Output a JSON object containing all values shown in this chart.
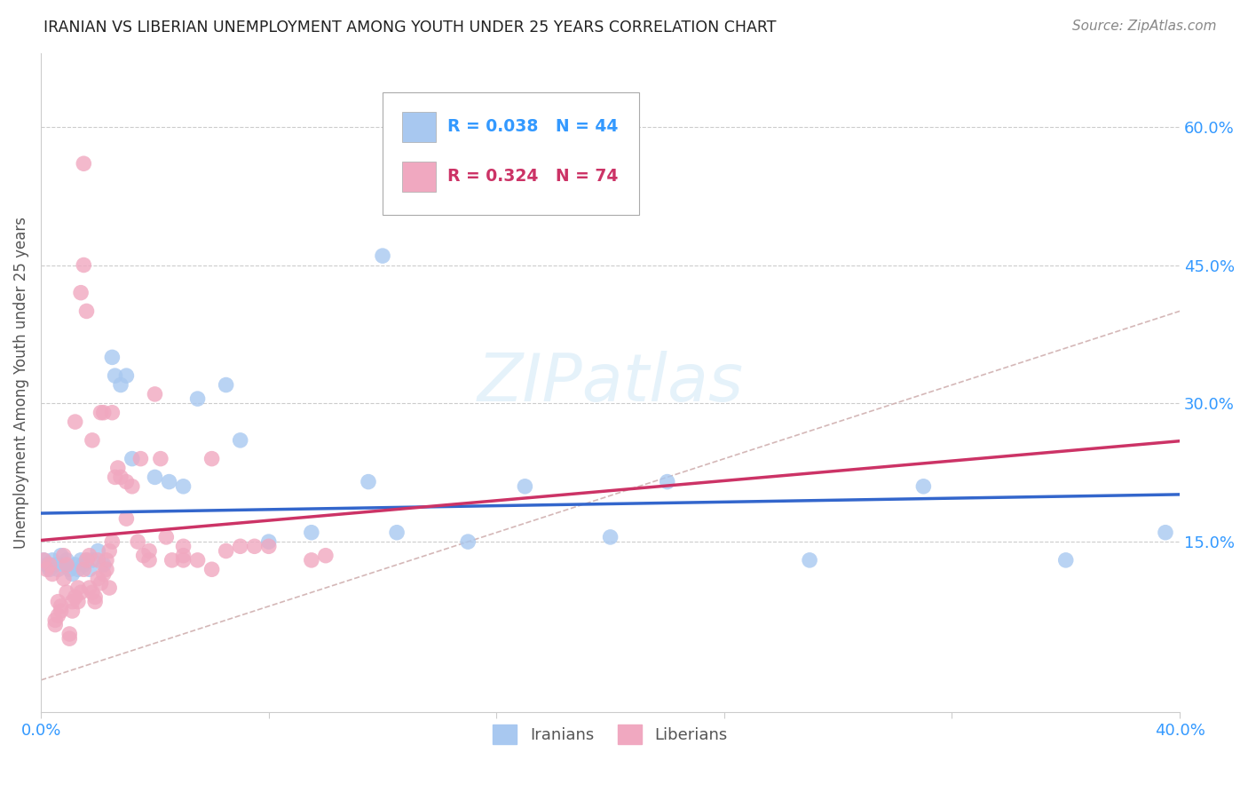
{
  "title": "IRANIAN VS LIBERIAN UNEMPLOYMENT AMONG YOUTH UNDER 25 YEARS CORRELATION CHART",
  "source": "Source: ZipAtlas.com",
  "ylabel": "Unemployment Among Youth under 25 years",
  "x_min": 0.0,
  "x_max": 0.4,
  "y_min": -0.035,
  "y_max": 0.68,
  "iranian_color": "#a8c8f0",
  "liberian_color": "#f0a8c0",
  "trendline_iranian_color": "#3366cc",
  "trendline_liberian_color": "#cc3366",
  "diagonal_color": "#d0b0b0",
  "iran_x": [
    0.001,
    0.002,
    0.003,
    0.004,
    0.005,
    0.006,
    0.007,
    0.008,
    0.009,
    0.01,
    0.011,
    0.012,
    0.013,
    0.014,
    0.015,
    0.016,
    0.017,
    0.018,
    0.02,
    0.022,
    0.025,
    0.026,
    0.028,
    0.03,
    0.032,
    0.04,
    0.045,
    0.05,
    0.055,
    0.065,
    0.07,
    0.08,
    0.095,
    0.115,
    0.125,
    0.15,
    0.17,
    0.2,
    0.22,
    0.27,
    0.31,
    0.36,
    0.395,
    0.12
  ],
  "iran_y": [
    0.13,
    0.125,
    0.12,
    0.13,
    0.125,
    0.12,
    0.135,
    0.125,
    0.13,
    0.12,
    0.115,
    0.125,
    0.12,
    0.13,
    0.125,
    0.13,
    0.12,
    0.13,
    0.14,
    0.125,
    0.35,
    0.33,
    0.32,
    0.33,
    0.24,
    0.22,
    0.215,
    0.21,
    0.305,
    0.32,
    0.26,
    0.15,
    0.16,
    0.215,
    0.16,
    0.15,
    0.21,
    0.155,
    0.215,
    0.13,
    0.21,
    0.13,
    0.16,
    0.46
  ],
  "lib_x": [
    0.001,
    0.002,
    0.003,
    0.004,
    0.005,
    0.006,
    0.007,
    0.008,
    0.009,
    0.01,
    0.011,
    0.012,
    0.013,
    0.014,
    0.015,
    0.016,
    0.017,
    0.018,
    0.019,
    0.02,
    0.021,
    0.022,
    0.023,
    0.024,
    0.025,
    0.026,
    0.027,
    0.028,
    0.03,
    0.032,
    0.034,
    0.036,
    0.038,
    0.04,
    0.042,
    0.044,
    0.046,
    0.05,
    0.055,
    0.06,
    0.065,
    0.07,
    0.075,
    0.08,
    0.005,
    0.006,
    0.007,
    0.008,
    0.009,
    0.01,
    0.011,
    0.012,
    0.013,
    0.014,
    0.015,
    0.016,
    0.017,
    0.018,
    0.019,
    0.02,
    0.021,
    0.022,
    0.023,
    0.024,
    0.03,
    0.038,
    0.05,
    0.06,
    0.095,
    0.1,
    0.015,
    0.025,
    0.035,
    0.05
  ],
  "lib_y": [
    0.13,
    0.12,
    0.125,
    0.115,
    0.065,
    0.085,
    0.075,
    0.135,
    0.125,
    0.045,
    0.085,
    0.28,
    0.1,
    0.42,
    0.45,
    0.4,
    0.135,
    0.26,
    0.09,
    0.13,
    0.29,
    0.29,
    0.13,
    0.14,
    0.15,
    0.22,
    0.23,
    0.22,
    0.215,
    0.21,
    0.15,
    0.135,
    0.13,
    0.31,
    0.24,
    0.155,
    0.13,
    0.13,
    0.13,
    0.24,
    0.14,
    0.145,
    0.145,
    0.145,
    0.06,
    0.07,
    0.08,
    0.11,
    0.095,
    0.05,
    0.075,
    0.09,
    0.085,
    0.095,
    0.12,
    0.13,
    0.1,
    0.095,
    0.085,
    0.11,
    0.105,
    0.115,
    0.12,
    0.1,
    0.175,
    0.14,
    0.145,
    0.12,
    0.13,
    0.135,
    0.56,
    0.29,
    0.24,
    0.135
  ]
}
